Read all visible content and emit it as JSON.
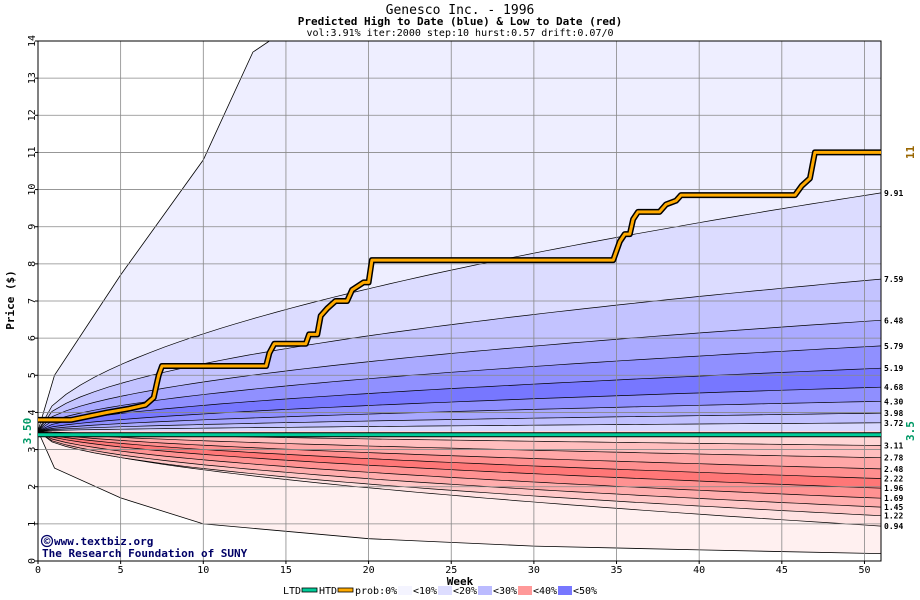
{
  "chart_data": {
    "type": "area",
    "title": "Genesco Inc. - 1996",
    "subtitle": "Predicted High to Date (blue) &  Low to Date (red)",
    "params": "vol:3.91% iter:2000 step:10 hurst:0.57 drift:0.07/0",
    "xlabel": "Week",
    "ylabel": "Price ($)",
    "xlim": [
      0,
      51
    ],
    "ylim": [
      0,
      14
    ],
    "xticks": [
      "0",
      "5",
      "10",
      "15",
      "20",
      "25",
      "30",
      "35",
      "40",
      "45",
      "50"
    ],
    "yticks": [
      "0",
      "1",
      "2",
      "3",
      "4",
      "5",
      "6",
      "7",
      "8",
      "9",
      "10",
      "11",
      "12",
      "13",
      "14"
    ],
    "start_price": 3.5,
    "start_label_left": "3.50",
    "start_label_right": "3.5",
    "last_high_label": "11",
    "colors": {
      "high_band_light": "#eeeeff",
      "high_band_dark": "#7777ff",
      "low_band_light": "#fff0f0",
      "low_band_dark": "#ff7777",
      "htd_line": "#ffaa00",
      "ltd_line": "#00cc99",
      "right_label_gold": "#996600",
      "right_label_green": "#009966"
    },
    "high_quantile_labels": [
      "9.91",
      "7.59",
      "6.48",
      "5.79",
      "5.19",
      "4.68",
      "4.30",
      "3.98",
      "3.72"
    ],
    "low_quantile_labels": [
      "3.11",
      "2.78",
      "2.48",
      "2.22",
      "1.96",
      "1.69",
      "1.45",
      "1.22",
      "0.94"
    ],
    "high_quantile_end_values": [
      9.91,
      7.59,
      6.48,
      5.79,
      5.19,
      4.68,
      4.3,
      3.98,
      3.72
    ],
    "low_quantile_end_values": [
      3.11,
      2.78,
      2.48,
      2.22,
      1.96,
      1.69,
      1.45,
      1.22,
      0.94
    ],
    "high_outer_envelope": [
      [
        0,
        3.5
      ],
      [
        1,
        5.0
      ],
      [
        5,
        7.7
      ],
      [
        10,
        10.8
      ],
      [
        13,
        13.7
      ],
      [
        14,
        14
      ]
    ],
    "low_outer_envelope": [
      [
        0,
        3.5
      ],
      [
        1,
        2.5
      ],
      [
        5,
        1.7
      ],
      [
        10,
        1.0
      ],
      [
        20,
        0.6
      ],
      [
        30,
        0.4
      ],
      [
        40,
        0.3
      ],
      [
        51,
        0.2
      ]
    ],
    "high_to_date": [
      [
        0,
        3.8
      ],
      [
        2,
        3.8
      ],
      [
        4.2,
        4.0
      ],
      [
        5.5,
        4.1
      ],
      [
        6.5,
        4.2
      ],
      [
        7,
        4.4
      ],
      [
        7.2,
        4.8
      ],
      [
        7.3,
        5.0
      ],
      [
        7.5,
        5.25
      ],
      [
        13.8,
        5.25
      ],
      [
        14,
        5.6
      ],
      [
        14.3,
        5.85
      ],
      [
        16.2,
        5.85
      ],
      [
        16.4,
        6.1
      ],
      [
        16.9,
        6.1
      ],
      [
        17.1,
        6.6
      ],
      [
        17.5,
        6.8
      ],
      [
        18,
        7.0
      ],
      [
        18.7,
        7.0
      ],
      [
        19,
        7.3
      ],
      [
        19.7,
        7.5
      ],
      [
        20,
        7.5
      ],
      [
        20.2,
        8.1
      ],
      [
        34.8,
        8.1
      ],
      [
        35.2,
        8.6
      ],
      [
        35.5,
        8.8
      ],
      [
        35.8,
        8.8
      ],
      [
        36,
        9.2
      ],
      [
        36.3,
        9.4
      ],
      [
        37.6,
        9.4
      ],
      [
        38,
        9.6
      ],
      [
        38.6,
        9.7
      ],
      [
        38.9,
        9.85
      ],
      [
        45.8,
        9.85
      ],
      [
        46.2,
        10.1
      ],
      [
        46.7,
        10.3
      ],
      [
        47,
        11.0
      ],
      [
        51,
        11.0
      ]
    ],
    "low_to_date": [
      [
        0,
        3.4
      ],
      [
        51,
        3.4
      ]
    ],
    "legend": {
      "ltd": "LTD",
      "htd": "HTD",
      "prob_prefix": "prob:0%",
      "bins": [
        "<10%",
        "<20%",
        "<30%",
        "<40%",
        "<50%"
      ],
      "bin_colors": [
        "#f4f4ff",
        "#ddddff",
        "#bbbbff",
        "#ff9999",
        "#7777ff"
      ]
    },
    "credit_line1": "www.textbiz.org",
    "credit_line2": "The Research Foundation of SUNY",
    "credit_symbol": "©",
    "legend_placement": "bottom",
    "grid": true
  }
}
